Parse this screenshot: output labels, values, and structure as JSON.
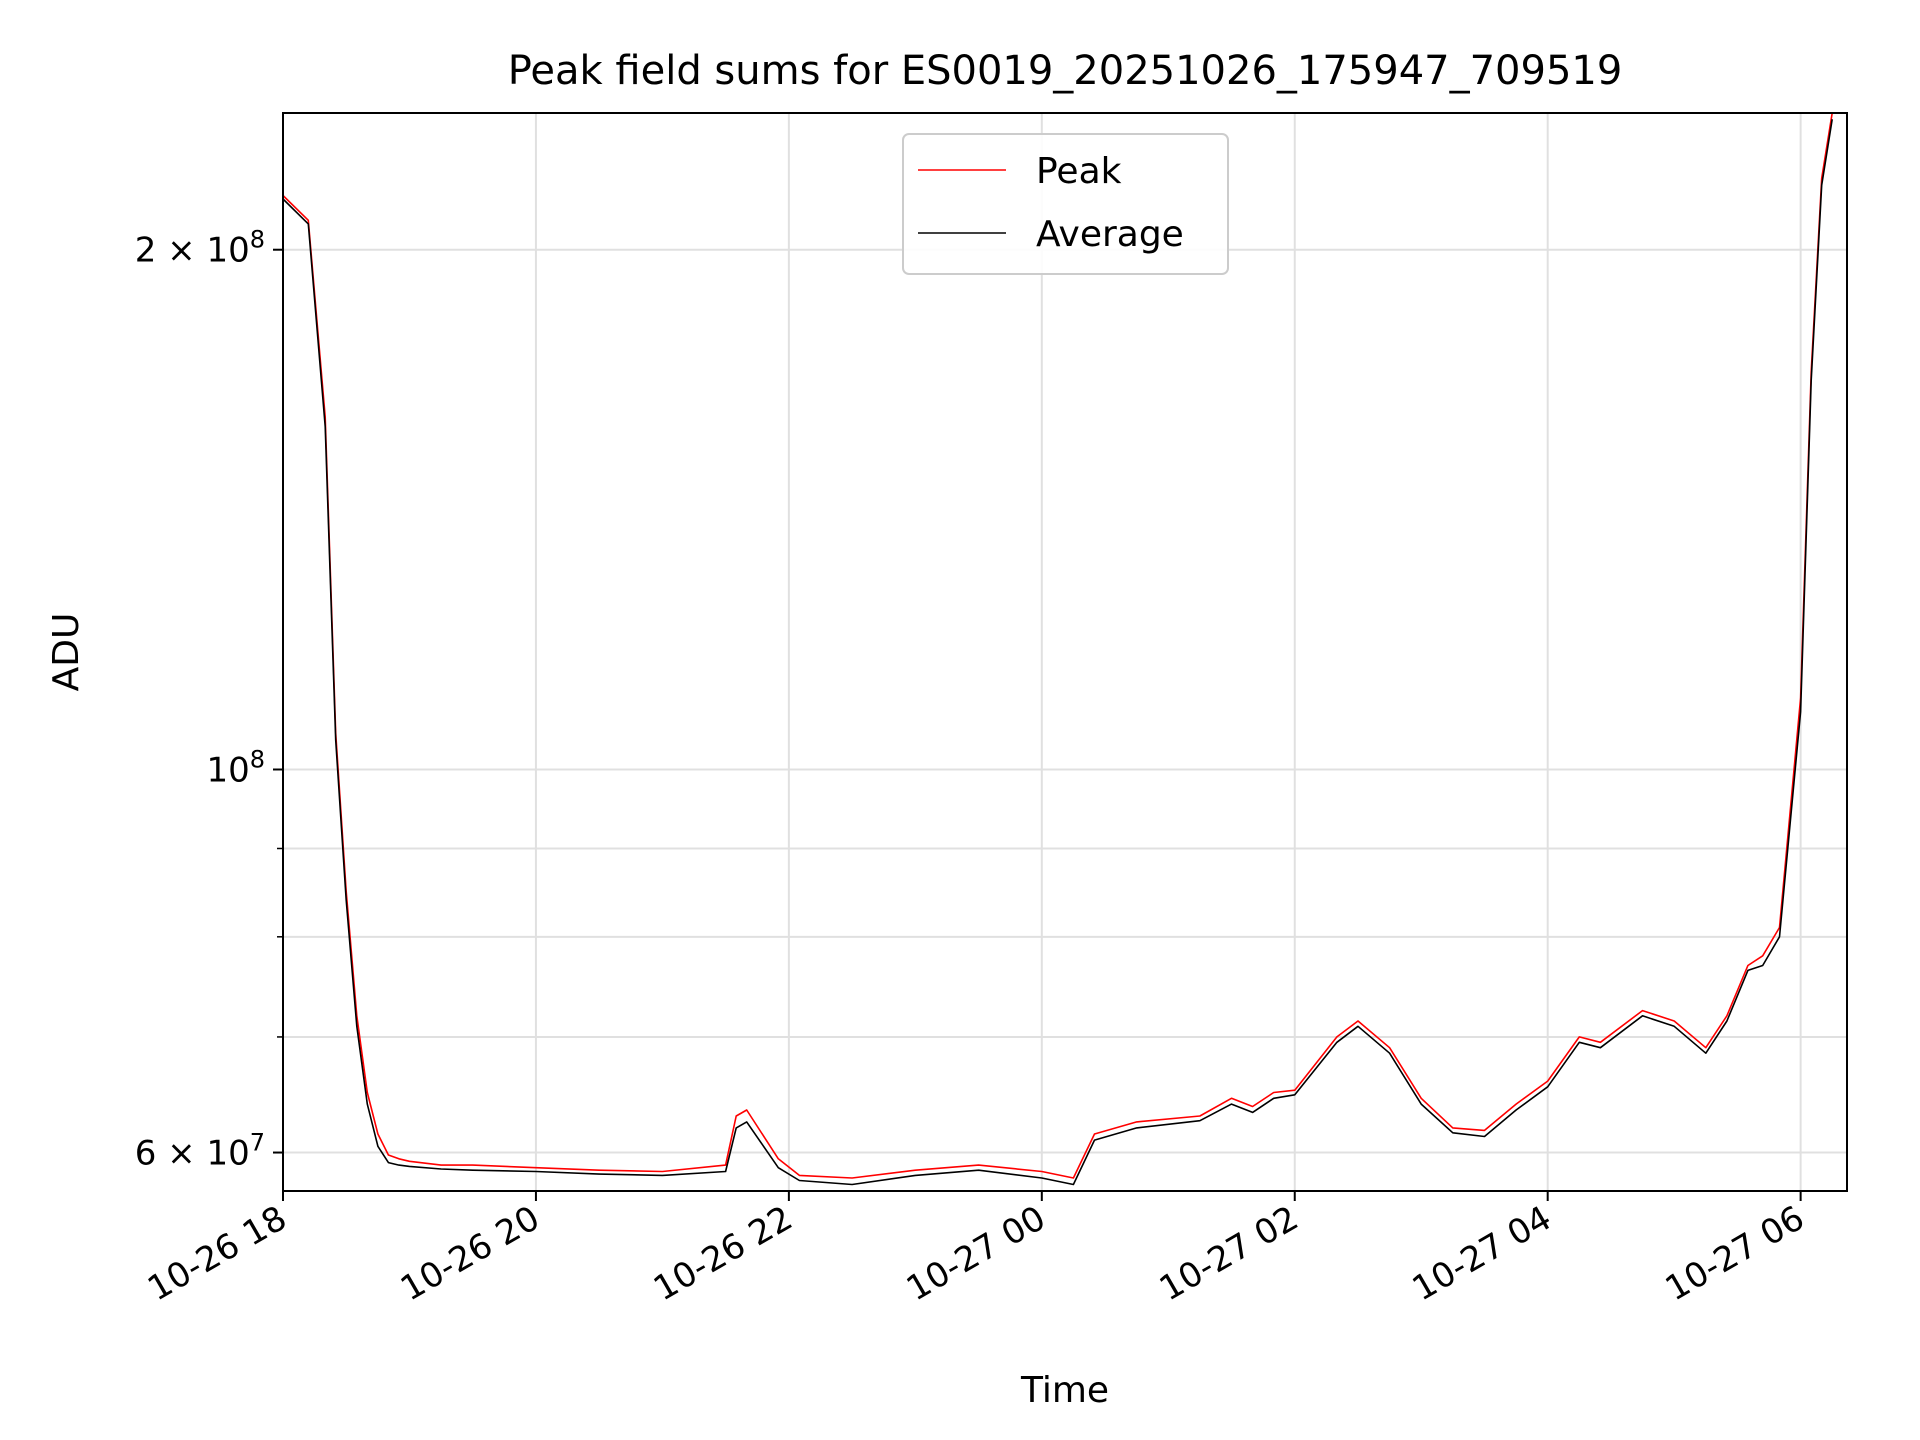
{
  "chart_data": {
    "type": "line",
    "title": "Peak field sums for ES0019_20251026_175947_709519",
    "xlabel": "Time",
    "ylabel": "ADU",
    "yscale": "log",
    "xlim": [
      "10-26 18:00",
      "10-27 06:22"
    ],
    "ylim": [
      57000000,
      240000000
    ],
    "grid": true,
    "legend_position": "top-center",
    "x_ticks": [
      "10-26 18",
      "10-26 20",
      "10-26 22",
      "10-27 00",
      "10-27 02",
      "10-27 04",
      "10-27 06"
    ],
    "y_ticks": [
      {
        "value": 200000000,
        "mantissa": "2",
        "base": "10",
        "exp": "8"
      },
      {
        "value": 100000000,
        "mantissa": "",
        "base": "10",
        "exp": "8"
      },
      {
        "value": 60000000,
        "mantissa": "6",
        "base": "10",
        "exp": "7"
      }
    ],
    "minor_y_ticks": [
      70000000,
      80000000,
      90000000
    ],
    "colors": {
      "peak": "#ff0000",
      "average": "#000000",
      "grid": "#e0e0e0"
    },
    "series": [
      {
        "name": "Peak",
        "x": [
          "10-26 18:00",
          "10-26 18:12",
          "10-26 18:20",
          "10-26 18:25",
          "10-26 18:30",
          "10-26 18:35",
          "10-26 18:40",
          "10-26 18:45",
          "10-26 18:50",
          "10-26 18:55",
          "10-26 19:00",
          "10-26 19:15",
          "10-26 19:30",
          "10-26 20:00",
          "10-26 20:30",
          "10-26 21:00",
          "10-26 21:30",
          "10-26 21:35",
          "10-26 21:40",
          "10-26 21:55",
          "10-26 22:05",
          "10-26 22:30",
          "10-26 23:00",
          "10-26 23:30",
          "10-27 00:00",
          "10-27 00:15",
          "10-27 00:25",
          "10-27 00:45",
          "10-27 01:15",
          "10-27 01:30",
          "10-27 01:40",
          "10-27 01:50",
          "10-27 02:00",
          "10-27 02:20",
          "10-27 02:30",
          "10-27 02:45",
          "10-27 03:00",
          "10-27 03:15",
          "10-27 03:30",
          "10-27 03:45",
          "10-27 04:00",
          "10-27 04:15",
          "10-27 04:25",
          "10-27 04:45",
          "10-27 05:00",
          "10-27 05:15",
          "10-27 05:25",
          "10-27 05:35",
          "10-27 05:42",
          "10-27 05:50",
          "10-27 06:00",
          "10-27 06:05",
          "10-27 06:10",
          "10-27 06:15"
        ],
        "y": [
          215000000,
          208000000,
          160000000,
          105000000,
          85000000,
          72000000,
          65000000,
          61500000,
          59800000,
          59500000,
          59300000,
          59000000,
          59000000,
          58800000,
          58600000,
          58500000,
          59000000,
          63000000,
          63500000,
          59500000,
          58200000,
          58000000,
          58600000,
          59000000,
          58500000,
          58000000,
          61500000,
          62500000,
          63000000,
          64500000,
          63800000,
          65000000,
          65200000,
          70000000,
          71500000,
          69000000,
          64500000,
          62000000,
          61800000,
          64000000,
          66000000,
          70000000,
          69500000,
          72500000,
          71500000,
          69000000,
          72000000,
          77000000,
          78000000,
          81000000,
          110000000,
          170000000,
          220000000,
          240000000
        ]
      },
      {
        "name": "Average",
        "x": [
          "10-26 18:00",
          "10-26 18:12",
          "10-26 18:20",
          "10-26 18:25",
          "10-26 18:30",
          "10-26 18:35",
          "10-26 18:40",
          "10-26 18:45",
          "10-26 18:50",
          "10-26 18:55",
          "10-26 19:00",
          "10-26 19:15",
          "10-26 19:30",
          "10-26 20:00",
          "10-26 20:30",
          "10-26 21:00",
          "10-26 21:30",
          "10-26 21:35",
          "10-26 21:40",
          "10-26 21:55",
          "10-26 22:05",
          "10-26 22:30",
          "10-26 23:00",
          "10-26 23:30",
          "10-27 00:00",
          "10-27 00:15",
          "10-27 00:25",
          "10-27 00:45",
          "10-27 01:15",
          "10-27 01:30",
          "10-27 01:40",
          "10-27 01:50",
          "10-27 02:00",
          "10-27 02:20",
          "10-27 02:30",
          "10-27 02:45",
          "10-27 03:00",
          "10-27 03:15",
          "10-27 03:30",
          "10-27 03:45",
          "10-27 04:00",
          "10-27 04:15",
          "10-27 04:25",
          "10-27 04:45",
          "10-27 05:00",
          "10-27 05:15",
          "10-27 05:25",
          "10-27 05:35",
          "10-27 05:42",
          "10-27 05:50",
          "10-27 06:00",
          "10-27 06:05",
          "10-27 06:10",
          "10-27 06:15"
        ],
        "y": [
          214000000,
          207000000,
          158000000,
          104000000,
          84000000,
          71000000,
          64000000,
          60500000,
          59200000,
          59000000,
          58900000,
          58700000,
          58600000,
          58500000,
          58300000,
          58200000,
          58500000,
          62000000,
          62500000,
          58800000,
          57800000,
          57500000,
          58200000,
          58600000,
          58000000,
          57500000,
          61000000,
          62000000,
          62600000,
          64000000,
          63300000,
          64500000,
          64800000,
          69500000,
          71000000,
          68500000,
          64000000,
          61600000,
          61300000,
          63500000,
          65500000,
          69500000,
          69000000,
          72000000,
          71000000,
          68500000,
          71500000,
          76500000,
          77000000,
          80000000,
          108000000,
          168000000,
          218000000,
          238000000
        ]
      }
    ]
  }
}
